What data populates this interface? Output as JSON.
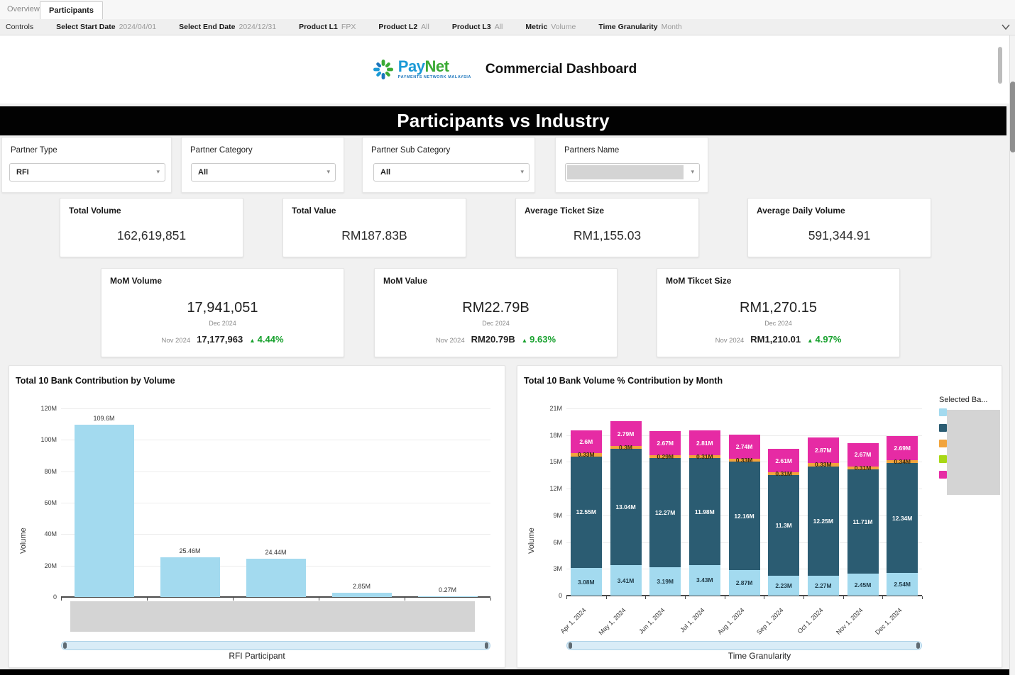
{
  "tabs": {
    "items": [
      {
        "label": "Overview",
        "active": false
      },
      {
        "label": "Participants",
        "active": true
      }
    ]
  },
  "controls_bar": {
    "title": "Controls",
    "items": [
      {
        "label": "Select Start Date",
        "value": "2024/04/01"
      },
      {
        "label": "Select End Date",
        "value": "2024/12/31"
      },
      {
        "label": "Product L1",
        "value": "FPX"
      },
      {
        "label": "Product L2",
        "value": "All"
      },
      {
        "label": "Product L3",
        "value": "All"
      },
      {
        "label": "Metric",
        "value": "Volume"
      },
      {
        "label": "Time Granularity",
        "value": "Month"
      }
    ]
  },
  "header": {
    "brand_pay": "Pay",
    "brand_net": "Net",
    "brand_tagline": "PAYMENTS NETWORK MALAYSIA",
    "title": "Commercial Dashboard"
  },
  "banner": {
    "title": "Participants vs Industry"
  },
  "filters": [
    {
      "label": "Partner Type",
      "value": "RFI",
      "redacted": false
    },
    {
      "label": "Partner Category",
      "value": "All",
      "redacted": false
    },
    {
      "label": "Partner Sub Category",
      "value": "All",
      "redacted": false
    },
    {
      "label": "Partners Name",
      "value": "",
      "redacted": true
    }
  ],
  "kpi_cards": [
    {
      "title": "Total Volume",
      "value": "162,619,851"
    },
    {
      "title": "Total Value",
      "value": "RM187.83B"
    },
    {
      "title": "Average Ticket Size",
      "value": "RM1,155.03"
    },
    {
      "title": "Average Daily Volume",
      "value": "591,344.91"
    }
  ],
  "mom_cards": [
    {
      "title": "MoM Volume",
      "value": "17,941,051",
      "period": "Dec 2024",
      "prev_label": "Nov 2024",
      "prev_value": "17,177,963",
      "delta": "4.44%"
    },
    {
      "title": "MoM Value",
      "value": "RM22.79B",
      "period": "Dec 2024",
      "prev_label": "Nov 2024",
      "prev_value": "RM20.79B",
      "delta": "9.63%"
    },
    {
      "title": "MoM Tikcet Size",
      "value": "RM1,270.15",
      "period": "Dec 2024",
      "prev_label": "Nov 2024",
      "prev_value": "RM1,210.01",
      "delta": "4.97%"
    }
  ],
  "colors": {
    "light_blue": "#a3daef",
    "dark_teal": "#2b5c72",
    "orange": "#f2a43c",
    "green": "#a8d816",
    "magenta": "#e62ba4",
    "positive_green": "#18a12e",
    "redaction_gray": "#d4d4d4"
  },
  "chart_data": [
    {
      "type": "bar",
      "title": "Total 10 Bank Contribution by Volume",
      "ylabel": "Volume",
      "xlabel": "RFI Participant",
      "categories_redacted": true,
      "values": [
        109.6,
        25.46,
        24.44,
        2.85,
        0.27
      ],
      "labels": [
        "109.6M",
        "25.46M",
        "24.44M",
        "2.85M",
        "0.27M"
      ],
      "unit": "M",
      "ylim": [
        0,
        120
      ],
      "yticks": [
        "120M",
        "100M",
        "80M",
        "60M",
        "40M",
        "20M",
        "0"
      ],
      "bar_color": "#a3daef",
      "grid": true
    },
    {
      "type": "stacked-bar",
      "title": "Total 10 Bank Volume % Contribution by Month",
      "ylabel": "Volume",
      "xlabel": "Time Granularity",
      "categories": [
        "Apr 1, 2024",
        "May 1, 2024",
        "Jun 1, 2024",
        "Jul 1, 2024",
        "Aug 1, 2024",
        "Sep 1, 2024",
        "Oct 1, 2024",
        "Nov 1, 2024",
        "Dec 1, 2024"
      ],
      "ylim": [
        0,
        21
      ],
      "yticks": [
        "21M",
        "18M",
        "15M",
        "12M",
        "9M",
        "6M",
        "3M",
        "0"
      ],
      "grid": true,
      "legend": {
        "title": "Selected Ba...",
        "position": "right",
        "labels_redacted": true,
        "colors": [
          "#a3daef",
          "#2b5c72",
          "#f2a43c",
          "#a8d816",
          "#e62ba4"
        ]
      },
      "series": [
        {
          "name": "segment-light-blue",
          "color": "#a3daef",
          "label_color": "#1f3a47",
          "labels": [
            "3.08M",
            "3.41M",
            "3.19M",
            "3.43M",
            "2.87M",
            "2.23M",
            "2.27M",
            "2.45M",
            "2.54M"
          ]
        },
        {
          "name": "segment-dark-teal",
          "color": "#2b5c72",
          "label_color": "#ffffff",
          "labels": [
            "12.55M",
            "13.04M",
            "12.27M",
            "11.98M",
            "12.16M",
            "11.3M",
            "12.25M",
            "11.71M",
            "12.34M"
          ]
        },
        {
          "name": "segment-orange",
          "color": "#f2a43c",
          "label_color": "#3a2a10",
          "labels": [
            "0.33M",
            "0.3M",
            "0.29M",
            "0.31M",
            "0.33M",
            "0.31M",
            "0.33M",
            "0.31M",
            "0.34M"
          ]
        },
        {
          "name": "segment-magenta",
          "color": "#e62ba4",
          "label_color": "#ffffff",
          "labels": [
            "2.6M",
            "2.79M",
            "2.67M",
            "2.81M",
            "2.74M",
            "2.61M",
            "2.87M",
            "2.67M",
            "2.69M"
          ]
        }
      ]
    }
  ]
}
